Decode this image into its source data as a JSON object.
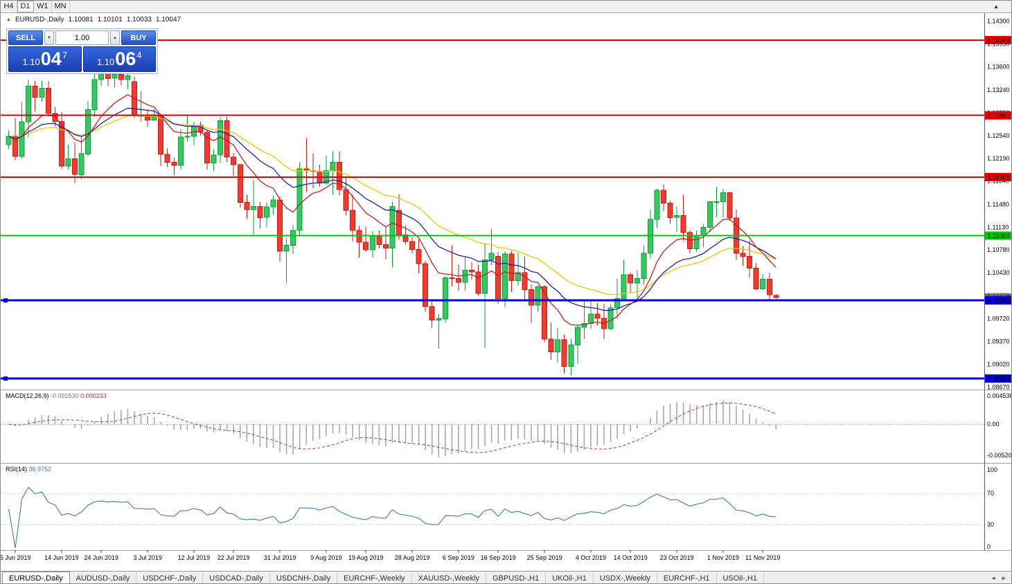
{
  "toolbar": {
    "timeframes": [
      {
        "label": "H4",
        "active": false
      },
      {
        "label": "D1",
        "active": true
      },
      {
        "label": "W1",
        "active": false
      },
      {
        "label": "MN",
        "active": false
      }
    ]
  },
  "ohlc_header": {
    "symbol": "EURUSD-,Daily",
    "open": "1.10081",
    "high": "1.10101",
    "low": "1.10033",
    "close": "1.10047"
  },
  "trade_panel": {
    "sell_label": "SELL",
    "buy_label": "BUY",
    "volume_value": "1.00",
    "sell_price": {
      "base": "1.10",
      "pips": "04",
      "point": "7"
    },
    "buy_price": {
      "base": "1.10",
      "pips": "06",
      "point": "4"
    }
  },
  "chart_data": {
    "type": "candlestick",
    "symbol": "EURUSD-",
    "timeframe": "Daily",
    "y_axis": {
      "max": 1.14424,
      "min": 1.08631
    },
    "price_axis_labels": [
      "1.14300",
      "1.13950",
      "1.13600",
      "1.13240",
      "1.12890",
      "1.12540",
      "1.12190",
      "1.11840",
      "1.11480",
      "1.11130",
      "1.10780",
      "1.10430",
      "1.10080",
      "1.09720",
      "1.09370",
      "1.09020",
      "1.08670"
    ],
    "current_price": {
      "value": 1.10047,
      "label": "1.10047",
      "color": "#707070"
    },
    "horizontal_lines": [
      {
        "price": 1.14009,
        "label": "1.14009",
        "color": "#e60000",
        "width": 2,
        "text_color": "#ffffff",
        "handles": false
      },
      {
        "price": 1.12851,
        "label": "1.12851",
        "color": "#e60000",
        "width": 2,
        "text_color": "#ffffff",
        "handles": false
      },
      {
        "price": 1.11901,
        "label": "1.11901",
        "color": "#e60000",
        "width": 2,
        "text_color": "#ffffff",
        "handles": false
      },
      {
        "price": 1.11,
        "label": "1.11000",
        "color": "#00c800",
        "width": 2,
        "text_color": "#000000",
        "handles": false
      },
      {
        "price": 1.10003,
        "label": "1.10003",
        "color": "#0000e0",
        "width": 3,
        "text_color": "#ffffff",
        "handles": true
      },
      {
        "price": 1.088,
        "label": "1.08800",
        "color": "#0000e0",
        "width": 3,
        "text_color": "#ffffff",
        "handles": true
      }
    ],
    "moving_averages": [
      {
        "period": 32,
        "color": "#f2c500"
      },
      {
        "period": 20,
        "color": "#2020b0"
      },
      {
        "period": 10,
        "color": "#c02020"
      }
    ],
    "x_tick_labels": [
      {
        "label": "5 Jun 2019",
        "i": 1
      },
      {
        "label": "14 Jun 2019",
        "i": 8
      },
      {
        "label": "24 Jun 2019",
        "i": 14
      },
      {
        "label": "3 Jul 2019",
        "i": 21
      },
      {
        "label": "12 Jul 2019",
        "i": 28
      },
      {
        "label": "22 Jul 2019",
        "i": 34
      },
      {
        "label": "31 Jul 2019",
        "i": 41
      },
      {
        "label": "9 Aug 2019",
        "i": 48
      },
      {
        "label": "19 Aug 2019",
        "i": 54
      },
      {
        "label": "28 Aug 2019",
        "i": 61
      },
      {
        "label": "6 Sep 2019",
        "i": 68
      },
      {
        "label": "16 Sep 2019",
        "i": 74
      },
      {
        "label": "25 Sep 2019",
        "i": 81
      },
      {
        "label": "4 Oct 2019",
        "i": 88
      },
      {
        "label": "14 Oct 2019",
        "i": 94
      },
      {
        "label": "23 Oct 2019",
        "i": 101
      },
      {
        "label": "1 Nov 2019",
        "i": 108
      },
      {
        "label": "11 Nov 2019",
        "i": 114
      }
    ],
    "ohlc": [
      [
        1.124,
        1.1262,
        1.1233,
        1.1253
      ],
      [
        1.1253,
        1.1281,
        1.1216,
        1.1222
      ],
      [
        1.1222,
        1.1306,
        1.1219,
        1.1275
      ],
      [
        1.1275,
        1.134,
        1.1251,
        1.133
      ],
      [
        1.133,
        1.1338,
        1.1291,
        1.1313
      ],
      [
        1.1313,
        1.1338,
        1.1306,
        1.1327
      ],
      [
        1.1327,
        1.1338,
        1.1283,
        1.1288
      ],
      [
        1.1288,
        1.1298,
        1.1268,
        1.1276
      ],
      [
        1.1276,
        1.129,
        1.1203,
        1.1207
      ],
      [
        1.1207,
        1.124,
        1.1202,
        1.1218
      ],
      [
        1.1218,
        1.1243,
        1.1181,
        1.1194
      ],
      [
        1.1194,
        1.1255,
        1.1187,
        1.1226
      ],
      [
        1.1226,
        1.1307,
        1.1222,
        1.1294
      ],
      [
        1.1294,
        1.1348,
        1.1282,
        1.134
      ],
      [
        1.134,
        1.1354,
        1.133,
        1.135
      ],
      [
        1.135,
        1.1362,
        1.133,
        1.1342
      ],
      [
        1.1342,
        1.1356,
        1.1328,
        1.1348
      ],
      [
        1.1348,
        1.1359,
        1.1331,
        1.134
      ],
      [
        1.134,
        1.1358,
        1.1325,
        1.1346
      ],
      [
        1.1337,
        1.1345,
        1.1281,
        1.1285
      ],
      [
        1.1285,
        1.1322,
        1.1275,
        1.1285
      ],
      [
        1.1285,
        1.1295,
        1.1268,
        1.1278
      ],
      [
        1.1278,
        1.1295,
        1.1277,
        1.1284
      ],
      [
        1.1284,
        1.1288,
        1.1207,
        1.1225
      ],
      [
        1.1225,
        1.1234,
        1.1206,
        1.1213
      ],
      [
        1.1213,
        1.122,
        1.1193,
        1.1208
      ],
      [
        1.1208,
        1.1264,
        1.1202,
        1.1252
      ],
      [
        1.1252,
        1.1286,
        1.1245,
        1.1253
      ],
      [
        1.1253,
        1.1275,
        1.1239,
        1.127
      ],
      [
        1.127,
        1.1276,
        1.1254,
        1.1259
      ],
      [
        1.1259,
        1.1263,
        1.1202,
        1.1212
      ],
      [
        1.1212,
        1.1233,
        1.1199,
        1.1224
      ],
      [
        1.1224,
        1.1282,
        1.1212,
        1.1277
      ],
      [
        1.1277,
        1.1283,
        1.1213,
        1.1221
      ],
      [
        1.1221,
        1.1227,
        1.1192,
        1.1209
      ],
      [
        1.1209,
        1.1211,
        1.1143,
        1.1151
      ],
      [
        1.1151,
        1.1163,
        1.1126,
        1.114
      ],
      [
        1.114,
        1.1186,
        1.1101,
        1.1145
      ],
      [
        1.1145,
        1.1152,
        1.1111,
        1.1128
      ],
      [
        1.1128,
        1.1151,
        1.1113,
        1.1144
      ],
      [
        1.1144,
        1.1162,
        1.1132,
        1.1155
      ],
      [
        1.1155,
        1.1161,
        1.106,
        1.1076
      ],
      [
        1.1076,
        1.1096,
        1.1027,
        1.1085
      ],
      [
        1.1085,
        1.1116,
        1.1072,
        1.1108
      ],
      [
        1.1108,
        1.1213,
        1.1101,
        1.1203
      ],
      [
        1.1203,
        1.125,
        1.1167,
        1.12
      ],
      [
        1.12,
        1.1227,
        1.1173,
        1.1199
      ],
      [
        1.1199,
        1.1209,
        1.1175,
        1.1181
      ],
      [
        1.1181,
        1.1223,
        1.1178,
        1.12
      ],
      [
        1.12,
        1.123,
        1.1163,
        1.1213
      ],
      [
        1.1213,
        1.123,
        1.1162,
        1.1171
      ],
      [
        1.1171,
        1.1191,
        1.1131,
        1.1139
      ],
      [
        1.1139,
        1.1163,
        1.1091,
        1.1108
      ],
      [
        1.1108,
        1.1115,
        1.1066,
        1.109
      ],
      [
        1.109,
        1.1114,
        1.1075,
        1.1078
      ],
      [
        1.1078,
        1.1107,
        1.1066,
        1.11
      ],
      [
        1.11,
        1.1108,
        1.1081,
        1.1086
      ],
      [
        1.1086,
        1.1113,
        1.1064,
        1.1081
      ],
      [
        1.1081,
        1.1152,
        1.1051,
        1.1145
      ],
      [
        1.1139,
        1.1164,
        1.1094,
        1.1101
      ],
      [
        1.1101,
        1.1116,
        1.1086,
        1.1091
      ],
      [
        1.1091,
        1.1098,
        1.1073,
        1.1079
      ],
      [
        1.1079,
        1.1094,
        1.1042,
        1.1057
      ],
      [
        1.1057,
        1.1061,
        1.0983,
        1.0991
      ],
      [
        1.0991,
        1.0999,
        1.0958,
        1.097
      ],
      [
        1.097,
        1.0979,
        1.0926,
        1.0972
      ],
      [
        1.0972,
        1.1038,
        1.0966,
        1.1035
      ],
      [
        1.1035,
        1.1085,
        1.1022,
        1.1034
      ],
      [
        1.1034,
        1.1056,
        1.1015,
        1.1028
      ],
      [
        1.1028,
        1.1067,
        1.1015,
        1.1047
      ],
      [
        1.1047,
        1.1059,
        1.1032,
        1.1044
      ],
      [
        1.1044,
        1.1055,
        1.1008,
        1.1011
      ],
      [
        1.1011,
        1.1087,
        1.0927,
        1.1063
      ],
      [
        1.1063,
        1.111,
        1.1055,
        1.1073
      ],
      [
        1.1068,
        1.1075,
        1.0995,
        1.1003
      ],
      [
        1.1003,
        1.1076,
        1.099,
        1.1072
      ],
      [
        1.1072,
        1.1076,
        1.1013,
        1.1031
      ],
      [
        1.1031,
        1.1074,
        1.1023,
        1.1043
      ],
      [
        1.1043,
        1.1068,
        1.1,
        1.1017
      ],
      [
        1.1017,
        1.1025,
        1.0966,
        1.0993
      ],
      [
        1.0993,
        1.1024,
        1.0983,
        1.1021
      ],
      [
        1.1021,
        1.1024,
        1.0936,
        1.0941
      ],
      [
        1.0941,
        1.0966,
        1.0909,
        1.0921
      ],
      [
        1.0921,
        1.0958,
        1.0904,
        1.094
      ],
      [
        1.094,
        1.0948,
        1.0888,
        1.0899
      ],
      [
        1.0899,
        1.0941,
        1.0885,
        1.0932
      ],
      [
        1.0932,
        1.0963,
        1.0903,
        1.0959
      ],
      [
        1.0959,
        1.0999,
        1.0941,
        1.0965
      ],
      [
        1.0965,
        1.0999,
        1.0957,
        1.0979
      ],
      [
        1.0979,
        1.0996,
        1.0962,
        1.0973
      ],
      [
        1.0973,
        1.0995,
        1.0941,
        1.0957
      ],
      [
        1.0957,
        1.0994,
        1.0955,
        1.0989
      ],
      [
        1.0989,
        1.1034,
        1.0972,
        1.1003
      ],
      [
        1.1003,
        1.1063,
        1.1002,
        1.104
      ],
      [
        1.104,
        1.1043,
        1.1012,
        1.1027
      ],
      [
        1.1027,
        1.1047,
        1.1001,
        1.1034
      ],
      [
        1.1034,
        1.1085,
        1.1024,
        1.1073
      ],
      [
        1.1073,
        1.114,
        1.1065,
        1.1125
      ],
      [
        1.1125,
        1.1172,
        1.1112,
        1.117
      ],
      [
        1.117,
        1.1179,
        1.1138,
        1.115
      ],
      [
        1.115,
        1.1154,
        1.1118,
        1.1128
      ],
      [
        1.1128,
        1.1145,
        1.1106,
        1.1131
      ],
      [
        1.1131,
        1.1163,
        1.1092,
        1.1105
      ],
      [
        1.1105,
        1.1108,
        1.1073,
        1.108
      ],
      [
        1.108,
        1.1108,
        1.1075,
        1.11
      ],
      [
        1.11,
        1.1118,
        1.1082,
        1.1113
      ],
      [
        1.1113,
        1.1153,
        1.1106,
        1.1152
      ],
      [
        1.1152,
        1.1175,
        1.1129,
        1.1152
      ],
      [
        1.1152,
        1.1172,
        1.1128,
        1.1166
      ],
      [
        1.1166,
        1.1167,
        1.1123,
        1.1127
      ],
      [
        1.1127,
        1.114,
        1.1063,
        1.1073
      ],
      [
        1.1073,
        1.1084,
        1.1053,
        1.1068
      ],
      [
        1.1068,
        1.1092,
        1.1035,
        1.105
      ],
      [
        1.105,
        1.1058,
        1.1016,
        1.1018
      ],
      [
        1.1018,
        1.1041,
        1.1016,
        1.1033
      ],
      [
        1.1033,
        1.1043,
        1.1002,
        1.1009
      ],
      [
        1.10081,
        1.10101,
        1.10033,
        1.10047
      ]
    ],
    "indicators": {
      "macd": {
        "label": "MACD(12,26,9)",
        "value_main": "-0.001530",
        "value_signal": "0.000233",
        "fast": 12,
        "slow": 26,
        "signal": 9,
        "axis_labels": [
          "0.004536",
          "0.00",
          "-0.005205"
        ],
        "histogram_color": "#a8a8a8",
        "signal_color": "#c03030"
      },
      "rsi": {
        "label": "RSI(14)",
        "value": "36.9752",
        "period": 14,
        "levels": [
          70,
          30
        ],
        "axis_labels": [
          "100",
          "70",
          "30",
          "0"
        ],
        "line_color": "#3e78b4"
      }
    }
  },
  "bottom_tabs": {
    "active_index": 0,
    "tabs": [
      "EURUSD-,Daily",
      "AUDUSD-,Daily",
      "USDCHF-,Daily",
      "USDCAD-,Daily",
      "USDCNH-,Daily",
      "EURCHF-,Weekly",
      "XAUUSD-,Weekly",
      "GBPUSD-,H1",
      "UKOil-,H1",
      "USDX-,Weekly",
      "EURCHF-,H1",
      "USOil-,H1"
    ],
    "scroll_left_icon": "◄",
    "scroll_right_icon": "►"
  }
}
